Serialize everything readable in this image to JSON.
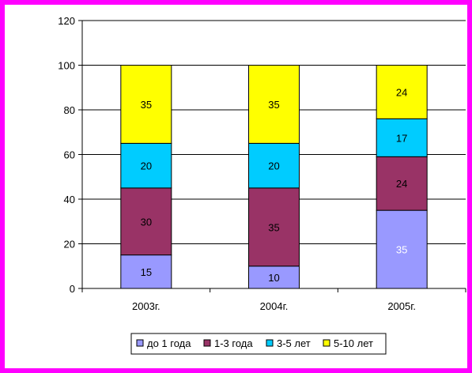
{
  "chart_data": {
    "type": "bar",
    "stacked": true,
    "categories": [
      "2003г.",
      "2004г.",
      "2005г."
    ],
    "series": [
      {
        "name": "до 1 года",
        "values": [
          15,
          10,
          35
        ],
        "color": "#9999FF"
      },
      {
        "name": "1-3 года",
        "values": [
          30,
          35,
          24
        ],
        "color": "#993366"
      },
      {
        "name": "3-5 лет",
        "values": [
          20,
          20,
          17
        ],
        "color": "#00CCFF"
      },
      {
        "name": "5-10 лет",
        "values": [
          35,
          35,
          24
        ],
        "color": "#FFFF00"
      }
    ],
    "ylim": [
      0,
      120
    ],
    "yticks": [
      0,
      20,
      40,
      60,
      80,
      100,
      120
    ],
    "grid": true,
    "legend": "bottom",
    "title": "",
    "xlabel": "",
    "ylabel": ""
  },
  "colors": {
    "frame": "#FF00FF"
  }
}
